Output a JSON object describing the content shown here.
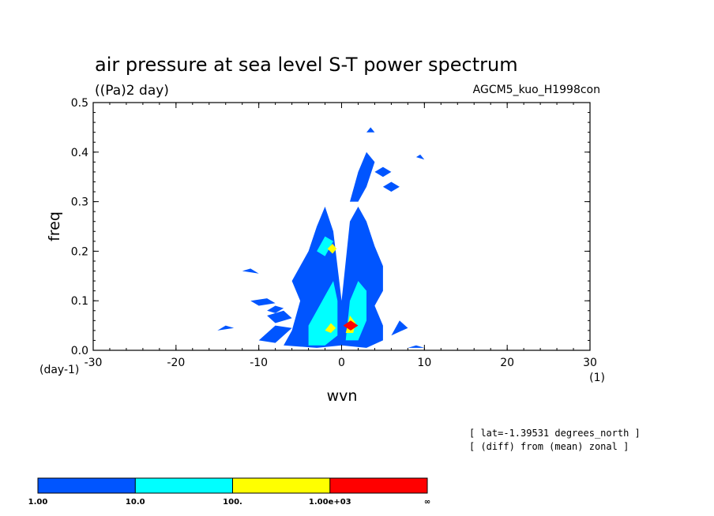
{
  "chart_data": {
    "type": "heatmap",
    "title": "air pressure at sea level S-T power spectrum",
    "units": "((Pa)2 day)",
    "run_label": "AGCM5_kuo_H1998con",
    "xlabel": "wvn",
    "xunit": "(1)",
    "ylabel": "freq",
    "yunit": "(day-1)",
    "xlim": [
      -30,
      30
    ],
    "ylim": [
      0.0,
      0.5
    ],
    "xticks": [
      "-30",
      "-20",
      "-10",
      "0",
      "10",
      "20",
      "30"
    ],
    "yticks": [
      "0.0",
      "0.1",
      "0.2",
      "0.3",
      "0.4",
      "0.5"
    ],
    "levels": [
      "1.00",
      "10.0",
      "100.",
      "1.00e+03",
      "∞"
    ],
    "colors": [
      "#0055ff",
      "#00ffff",
      "#ffff00",
      "#ff0000"
    ],
    "notes": [
      "[ lat=-1.39531 degrees_north ]",
      "[ (diff) from (mean) zonal ]"
    ],
    "regions": [
      {
        "level": 0,
        "poly": [
          [
            -7,
            0.01
          ],
          [
            -6,
            0.04
          ],
          [
            -5,
            0.1
          ],
          [
            -6,
            0.14
          ],
          [
            -5,
            0.17
          ],
          [
            -4,
            0.2
          ],
          [
            -3,
            0.25
          ],
          [
            -2,
            0.29
          ],
          [
            -1,
            0.24
          ],
          [
            0,
            0.1
          ],
          [
            0,
            0.01
          ],
          [
            -3,
            0.005
          ]
        ]
      },
      {
        "level": 0,
        "poly": [
          [
            0,
            0.01
          ],
          [
            0,
            0.1
          ],
          [
            1,
            0.26
          ],
          [
            2,
            0.29
          ],
          [
            3,
            0.26
          ],
          [
            4,
            0.21
          ],
          [
            5,
            0.17
          ],
          [
            5,
            0.12
          ],
          [
            4,
            0.09
          ],
          [
            5,
            0.05
          ],
          [
            5,
            0.02
          ],
          [
            3,
            0.005
          ]
        ]
      },
      {
        "level": 0,
        "poly": [
          [
            1,
            0.3
          ],
          [
            2,
            0.36
          ],
          [
            3,
            0.4
          ],
          [
            4,
            0.38
          ],
          [
            3,
            0.33
          ],
          [
            2,
            0.3
          ]
        ]
      },
      {
        "level": 0,
        "poly": [
          [
            -10,
            0.02
          ],
          [
            -8,
            0.05
          ],
          [
            -6,
            0.045
          ],
          [
            -8,
            0.015
          ]
        ]
      },
      {
        "level": 0,
        "poly": [
          [
            -9,
            0.07
          ],
          [
            -7,
            0.08
          ],
          [
            -6,
            0.065
          ],
          [
            -8,
            0.055
          ]
        ]
      },
      {
        "level": 0,
        "poly": [
          [
            -11,
            0.1
          ],
          [
            -9,
            0.105
          ],
          [
            -8,
            0.095
          ],
          [
            -10,
            0.09
          ]
        ]
      },
      {
        "level": 0,
        "poly": [
          [
            -9,
            0.08
          ],
          [
            -8,
            0.09
          ],
          [
            -7,
            0.085
          ],
          [
            -8,
            0.075
          ]
        ]
      },
      {
        "level": 0,
        "poly": [
          [
            -15,
            0.04
          ],
          [
            -14,
            0.05
          ],
          [
            -13,
            0.045
          ]
        ]
      },
      {
        "level": 0,
        "poly": [
          [
            -12,
            0.16
          ],
          [
            -11,
            0.165
          ],
          [
            -10,
            0.155
          ]
        ]
      },
      {
        "level": 0,
        "poly": [
          [
            5,
            0.33
          ],
          [
            6,
            0.34
          ],
          [
            7,
            0.33
          ],
          [
            6,
            0.32
          ]
        ]
      },
      {
        "level": 0,
        "poly": [
          [
            4,
            0.36
          ],
          [
            5,
            0.37
          ],
          [
            6,
            0.36
          ],
          [
            5,
            0.35
          ]
        ]
      },
      {
        "level": 0,
        "poly": [
          [
            8,
            0.005
          ],
          [
            9,
            0.01
          ],
          [
            10,
            0.005
          ]
        ]
      },
      {
        "level": 0,
        "poly": [
          [
            3,
            0.44
          ],
          [
            3.5,
            0.45
          ],
          [
            4,
            0.44
          ]
        ]
      },
      {
        "level": 0,
        "poly": [
          [
            9,
            0.39
          ],
          [
            9.5,
            0.395
          ],
          [
            10,
            0.385
          ]
        ]
      },
      {
        "level": 0,
        "poly": [
          [
            6,
            0.03
          ],
          [
            7,
            0.06
          ],
          [
            8,
            0.045
          ]
        ]
      },
      {
        "level": 1,
        "poly": [
          [
            -4,
            0.01
          ],
          [
            -4,
            0.05
          ],
          [
            -3,
            0.08
          ],
          [
            -2,
            0.11
          ],
          [
            -1,
            0.14
          ],
          [
            -0.5,
            0.1
          ],
          [
            -0.5,
            0.03
          ],
          [
            -2,
            0.01
          ]
        ]
      },
      {
        "level": 1,
        "poly": [
          [
            0.5,
            0.02
          ],
          [
            1,
            0.1
          ],
          [
            2,
            0.14
          ],
          [
            3,
            0.12
          ],
          [
            3,
            0.06
          ],
          [
            2,
            0.02
          ]
        ]
      },
      {
        "level": 1,
        "poly": [
          [
            -3,
            0.2
          ],
          [
            -2,
            0.23
          ],
          [
            -1,
            0.22
          ],
          [
            -2,
            0.19
          ]
        ]
      },
      {
        "level": 2,
        "poly": [
          [
            -2,
            0.04
          ],
          [
            -1.3,
            0.055
          ],
          [
            -0.7,
            0.045
          ],
          [
            -1.3,
            0.035
          ]
        ]
      },
      {
        "level": 2,
        "poly": [
          [
            0.5,
            0.035
          ],
          [
            1,
            0.07
          ],
          [
            1.7,
            0.055
          ],
          [
            1.4,
            0.035
          ]
        ]
      },
      {
        "level": 2,
        "poly": [
          [
            -1.7,
            0.205
          ],
          [
            -1.1,
            0.215
          ],
          [
            -0.6,
            0.205
          ],
          [
            -1.1,
            0.195
          ]
        ]
      },
      {
        "level": 3,
        "poly": [
          [
            0.2,
            0.05
          ],
          [
            1.1,
            0.06
          ],
          [
            2,
            0.05
          ],
          [
            1.1,
            0.04
          ]
        ]
      }
    ]
  }
}
